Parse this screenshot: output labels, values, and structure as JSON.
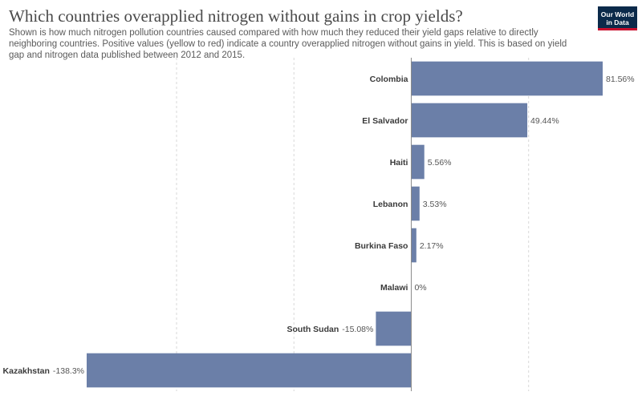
{
  "header": {
    "title": "Which countries overapplied nitrogen without gains in crop yields?",
    "subtitle": "Shown is how much nitrogen pollution countries caused compared with how much they reduced their yield gaps relative to directly neighboring countries. Positive values (yellow to red) indicate a country overapplied nitrogen without gains in yield. This is based on yield gap and nitrogen data published between 2012 and 2015.",
    "logo_line1": "Our World",
    "logo_line2": "in Data"
  },
  "chart_data": {
    "type": "bar",
    "orientation": "horizontal",
    "categories": [
      "Colombia",
      "El Salvador",
      "Haiti",
      "Lebanon",
      "Burkina Faso",
      "Malawi",
      "South Sudan",
      "Kazakhstan"
    ],
    "values": [
      81.56,
      49.44,
      5.56,
      3.53,
      2.17,
      0,
      -15.08,
      -138.3
    ],
    "value_labels": [
      "81.56%",
      "49.44%",
      "5.56%",
      "3.53%",
      "2.17%",
      "0%",
      "-15.08%",
      "-138.3%"
    ],
    "xlim": [
      -138.3,
      81.56
    ],
    "grid": "vertical dashed",
    "bar_color": "#6b7fa8"
  }
}
